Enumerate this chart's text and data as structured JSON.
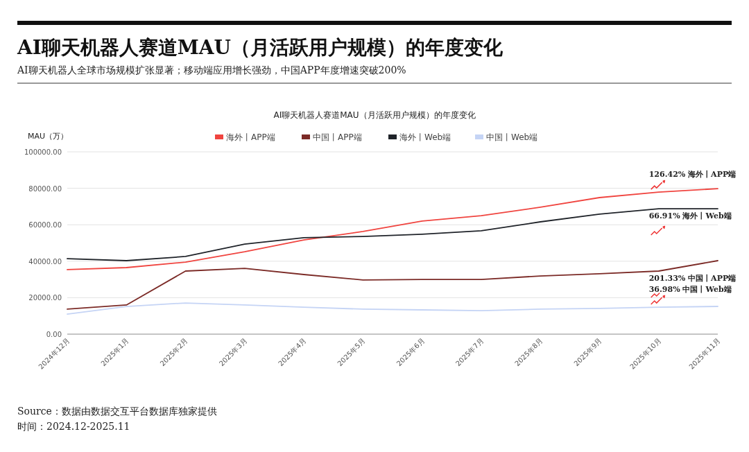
{
  "chart_data": {
    "type": "line",
    "title": "AI聊天机器人赛道MAU（月活跃用户规模）的年度变化",
    "subtitle": "AI聊天机器人全球市场规模扩张显著；移动端应用增长强劲，中国APP年度增速突破200%",
    "ylabel": "MAU（万）",
    "categories": [
      "2024年12月",
      "2025年1月",
      "2025年2月",
      "2025年3月",
      "2025年4月",
      "2025年5月",
      "2025年6月",
      "2025年7月",
      "2025年8月",
      "2025年9月",
      "2025年10月",
      "2025年11月"
    ],
    "series": [
      {
        "name": "海外丨APP端",
        "color": "#f0443f",
        "values": [
          35400,
          36500,
          39500,
          45200,
          51700,
          56300,
          62000,
          65000,
          69600,
          74900,
          77900,
          79800
        ]
      },
      {
        "name": "中国丨APP端",
        "color": "#7b2a26",
        "values": [
          13700,
          16000,
          34600,
          36100,
          32700,
          29700,
          30000,
          30000,
          31900,
          33100,
          34600,
          40300
        ]
      },
      {
        "name": "海外丨Web端",
        "color": "#1f2329",
        "values": [
          41400,
          40300,
          42600,
          49400,
          52900,
          53600,
          54800,
          56700,
          61600,
          65800,
          68800,
          68800
        ]
      },
      {
        "name": "中国丨Web端",
        "color": "#c5d4f5",
        "values": [
          11000,
          15200,
          17100,
          16000,
          14800,
          13700,
          13300,
          12900,
          13700,
          14100,
          14800,
          15200
        ]
      }
    ],
    "ylim": [
      0,
      100000
    ],
    "yticks": [
      {
        "value": 0,
        "label": "0.00"
      },
      {
        "value": 20000,
        "label": "20000.00"
      },
      {
        "value": 40000,
        "label": "40000.00"
      },
      {
        "value": 60000,
        "label": "60000.00"
      },
      {
        "value": 80000,
        "label": "80000.00"
      },
      {
        "value": 100000,
        "label": "100000.00"
      }
    ],
    "grid": "y",
    "legend": "top",
    "annotations": [
      "AI聊天机器人赛道MAU（月活跃用户规模）的年度变化",
      {
        "text": "126.42%  海外丨APP端",
        "x": "2025年10月",
        "y": 77900
      },
      {
        "text": "66.91%  海外丨Web端",
        "x": "2025年10月",
        "y": 68800
      },
      {
        "text": "201.33%  中国丨APP端",
        "x": "2025年10月",
        "y": 34600
      },
      {
        "text": "36.98%  中国丨Web端",
        "x": "2025年10月",
        "y": 14800
      },
      "Source：数据由数据交互平台数据库独家提供",
      "时间：2024.12-2025.11"
    ]
  }
}
